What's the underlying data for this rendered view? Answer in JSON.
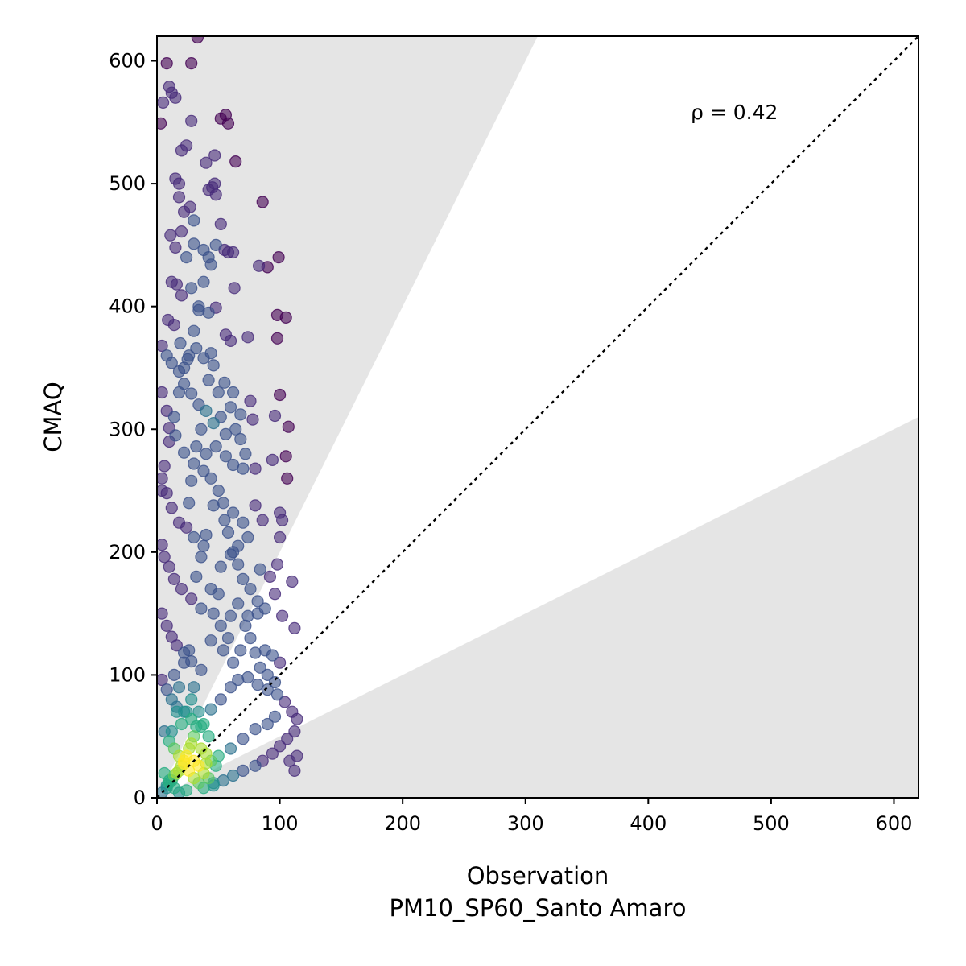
{
  "chart_data": {
    "type": "scatter",
    "title": "",
    "xlabel": "Observation",
    "xlabel_sub": "PM10_SP60_Santo Amaro",
    "ylabel": "CMAQ",
    "xlim": [
      0,
      620
    ],
    "ylim": [
      0,
      620
    ],
    "x_ticks": [
      0,
      100,
      200,
      300,
      400,
      500,
      600
    ],
    "y_ticks": [
      0,
      100,
      200,
      300,
      400,
      500,
      600
    ],
    "annotation": "ρ = 0.42",
    "reference_line": {
      "style": "dotted",
      "slope": 1
    },
    "shaded_band": {
      "upper_slope": 2,
      "lower_slope": 0.5,
      "color": "#e5e5e5",
      "note": "region outside factor-of-two band is shaded"
    },
    "grid": false,
    "colormap": "viridis (point density)",
    "point_color_low_density": "#440154",
    "point_color_high_density": "#fde725",
    "points": [
      [
        3,
        549
      ],
      [
        5,
        566
      ],
      [
        8,
        598
      ],
      [
        10,
        579
      ],
      [
        15,
        570
      ],
      [
        12,
        574
      ],
      [
        28,
        598
      ],
      [
        33,
        619
      ],
      [
        20,
        527
      ],
      [
        24,
        531
      ],
      [
        28,
        551
      ],
      [
        40,
        517
      ],
      [
        47,
        523
      ],
      [
        52,
        553
      ],
      [
        56,
        556
      ],
      [
        58,
        549
      ],
      [
        64,
        518
      ],
      [
        18,
        489
      ],
      [
        15,
        504
      ],
      [
        18,
        500
      ],
      [
        22,
        477
      ],
      [
        27,
        481
      ],
      [
        30,
        470
      ],
      [
        42,
        495
      ],
      [
        45,
        497
      ],
      [
        47,
        500
      ],
      [
        48,
        491
      ],
      [
        52,
        467
      ],
      [
        86,
        485
      ],
      [
        11,
        458
      ],
      [
        15,
        448
      ],
      [
        20,
        461
      ],
      [
        24,
        440
      ],
      [
        30,
        451
      ],
      [
        38,
        446
      ],
      [
        44,
        434
      ],
      [
        48,
        450
      ],
      [
        55,
        446
      ],
      [
        58,
        444
      ],
      [
        62,
        444
      ],
      [
        83,
        433
      ],
      [
        90,
        432
      ],
      [
        99,
        440
      ],
      [
        12,
        420
      ],
      [
        16,
        418
      ],
      [
        20,
        409
      ],
      [
        28,
        415
      ],
      [
        34,
        397
      ],
      [
        42,
        395
      ],
      [
        48,
        399
      ],
      [
        63,
        415
      ],
      [
        9,
        389
      ],
      [
        14,
        385
      ],
      [
        19,
        370
      ],
      [
        25,
        357
      ],
      [
        32,
        366
      ],
      [
        38,
        358
      ],
      [
        44,
        362
      ],
      [
        56,
        377
      ],
      [
        60,
        372
      ],
      [
        74,
        375
      ],
      [
        98,
        393
      ],
      [
        105,
        391
      ],
      [
        98,
        374
      ],
      [
        4,
        368
      ],
      [
        8,
        360
      ],
      [
        12,
        354
      ],
      [
        18,
        347
      ],
      [
        22,
        337
      ],
      [
        28,
        329
      ],
      [
        34,
        320
      ],
      [
        40,
        315
      ],
      [
        46,
        305
      ],
      [
        55,
        338
      ],
      [
        62,
        330
      ],
      [
        68,
        312
      ],
      [
        76,
        323
      ],
      [
        78,
        308
      ],
      [
        96,
        311
      ],
      [
        100,
        328
      ],
      [
        107,
        302
      ],
      [
        4,
        330
      ],
      [
        8,
        315
      ],
      [
        10,
        301
      ],
      [
        15,
        295
      ],
      [
        22,
        281
      ],
      [
        30,
        272
      ],
      [
        38,
        266
      ],
      [
        48,
        286
      ],
      [
        56,
        278
      ],
      [
        62,
        271
      ],
      [
        70,
        268
      ],
      [
        80,
        268
      ],
      [
        94,
        275
      ],
      [
        105,
        278
      ],
      [
        106,
        260
      ],
      [
        4,
        260
      ],
      [
        8,
        248
      ],
      [
        12,
        236
      ],
      [
        18,
        224
      ],
      [
        24,
        220
      ],
      [
        30,
        212
      ],
      [
        38,
        205
      ],
      [
        46,
        238
      ],
      [
        55,
        226
      ],
      [
        62,
        232
      ],
      [
        70,
        224
      ],
      [
        80,
        238
      ],
      [
        86,
        226
      ],
      [
        100,
        232
      ],
      [
        102,
        226
      ],
      [
        4,
        206
      ],
      [
        6,
        196
      ],
      [
        10,
        188
      ],
      [
        14,
        178
      ],
      [
        20,
        170
      ],
      [
        28,
        162
      ],
      [
        36,
        154
      ],
      [
        44,
        170
      ],
      [
        52,
        188
      ],
      [
        60,
        198
      ],
      [
        66,
        205
      ],
      [
        74,
        212
      ],
      [
        84,
        186
      ],
      [
        92,
        180
      ],
      [
        98,
        190
      ],
      [
        100,
        212
      ],
      [
        4,
        150
      ],
      [
        8,
        140
      ],
      [
        12,
        131
      ],
      [
        16,
        124
      ],
      [
        22,
        118
      ],
      [
        28,
        111
      ],
      [
        36,
        104
      ],
      [
        44,
        128
      ],
      [
        52,
        140
      ],
      [
        60,
        148
      ],
      [
        66,
        158
      ],
      [
        74,
        148
      ],
      [
        82,
        150
      ],
      [
        88,
        154
      ],
      [
        96,
        166
      ],
      [
        102,
        148
      ],
      [
        110,
        176
      ],
      [
        112,
        138
      ],
      [
        4,
        96
      ],
      [
        8,
        88
      ],
      [
        12,
        80
      ],
      [
        16,
        74
      ],
      [
        22,
        70
      ],
      [
        28,
        64
      ],
      [
        36,
        58
      ],
      [
        44,
        72
      ],
      [
        52,
        80
      ],
      [
        60,
        90
      ],
      [
        66,
        96
      ],
      [
        74,
        98
      ],
      [
        82,
        92
      ],
      [
        90,
        88
      ],
      [
        98,
        84
      ],
      [
        104,
        78
      ],
      [
        110,
        70
      ],
      [
        114,
        64
      ],
      [
        112,
        54
      ],
      [
        106,
        48
      ],
      [
        100,
        42
      ],
      [
        94,
        36
      ],
      [
        86,
        30
      ],
      [
        80,
        26
      ],
      [
        70,
        22
      ],
      [
        62,
        18
      ],
      [
        54,
        14
      ],
      [
        46,
        10
      ],
      [
        38,
        8
      ],
      [
        112,
        22
      ],
      [
        114,
        34
      ],
      [
        108,
        30
      ],
      [
        6,
        54
      ],
      [
        10,
        46
      ],
      [
        14,
        40
      ],
      [
        18,
        34
      ],
      [
        22,
        28
      ],
      [
        26,
        22
      ],
      [
        30,
        16
      ],
      [
        34,
        12
      ],
      [
        6,
        20
      ],
      [
        10,
        14
      ],
      [
        14,
        8
      ],
      [
        18,
        4
      ],
      [
        24,
        6
      ],
      [
        4,
        4
      ],
      [
        8,
        10
      ],
      [
        40,
        28
      ],
      [
        50,
        34
      ],
      [
        60,
        40
      ],
      [
        70,
        48
      ],
      [
        80,
        56
      ],
      [
        90,
        60
      ],
      [
        96,
        66
      ],
      [
        4,
        250
      ],
      [
        6,
        270
      ],
      [
        10,
        290
      ],
      [
        14,
        310
      ],
      [
        18,
        330
      ],
      [
        22,
        350
      ],
      [
        26,
        360
      ],
      [
        30,
        380
      ],
      [
        34,
        400
      ],
      [
        38,
        420
      ],
      [
        42,
        440
      ],
      [
        36,
        300
      ],
      [
        40,
        280
      ],
      [
        44,
        260
      ],
      [
        50,
        250
      ],
      [
        54,
        240
      ],
      [
        58,
        216
      ],
      [
        62,
        200
      ],
      [
        66,
        190
      ],
      [
        70,
        178
      ],
      [
        76,
        170
      ],
      [
        82,
        160
      ],
      [
        88,
        120
      ],
      [
        94,
        116
      ],
      [
        100,
        110
      ],
      [
        76,
        130
      ],
      [
        84,
        106
      ],
      [
        90,
        100
      ],
      [
        96,
        94
      ],
      [
        62,
        110
      ],
      [
        68,
        120
      ],
      [
        72,
        140
      ],
      [
        80,
        118
      ],
      [
        54,
        120
      ],
      [
        58,
        130
      ],
      [
        46,
        150
      ],
      [
        50,
        166
      ],
      [
        32,
        180
      ],
      [
        36,
        196
      ],
      [
        40,
        214
      ],
      [
        26,
        240
      ],
      [
        28,
        258
      ],
      [
        32,
        286
      ],
      [
        42,
        340
      ],
      [
        46,
        352
      ],
      [
        50,
        330
      ],
      [
        52,
        310
      ],
      [
        56,
        296
      ],
      [
        60,
        318
      ],
      [
        64,
        300
      ],
      [
        68,
        292
      ],
      [
        72,
        280
      ]
    ],
    "dense_core": [
      [
        16,
        20
      ],
      [
        14,
        18
      ],
      [
        18,
        22
      ],
      [
        12,
        14
      ],
      [
        20,
        26
      ],
      [
        10,
        12
      ],
      [
        22,
        30
      ],
      [
        24,
        34
      ],
      [
        8,
        8
      ],
      [
        26,
        40
      ],
      [
        28,
        44
      ],
      [
        30,
        50
      ],
      [
        32,
        58
      ],
      [
        20,
        60
      ],
      [
        16,
        70
      ],
      [
        12,
        54
      ],
      [
        24,
        70
      ],
      [
        28,
        80
      ],
      [
        30,
        90
      ],
      [
        18,
        90
      ],
      [
        14,
        100
      ],
      [
        22,
        110
      ],
      [
        26,
        120
      ],
      [
        34,
        70
      ],
      [
        38,
        60
      ],
      [
        42,
        50
      ],
      [
        36,
        40
      ],
      [
        40,
        36
      ],
      [
        44,
        30
      ],
      [
        48,
        26
      ],
      [
        30,
        30
      ],
      [
        34,
        26
      ],
      [
        38,
        20
      ],
      [
        42,
        16
      ],
      [
        46,
        12
      ]
    ]
  }
}
